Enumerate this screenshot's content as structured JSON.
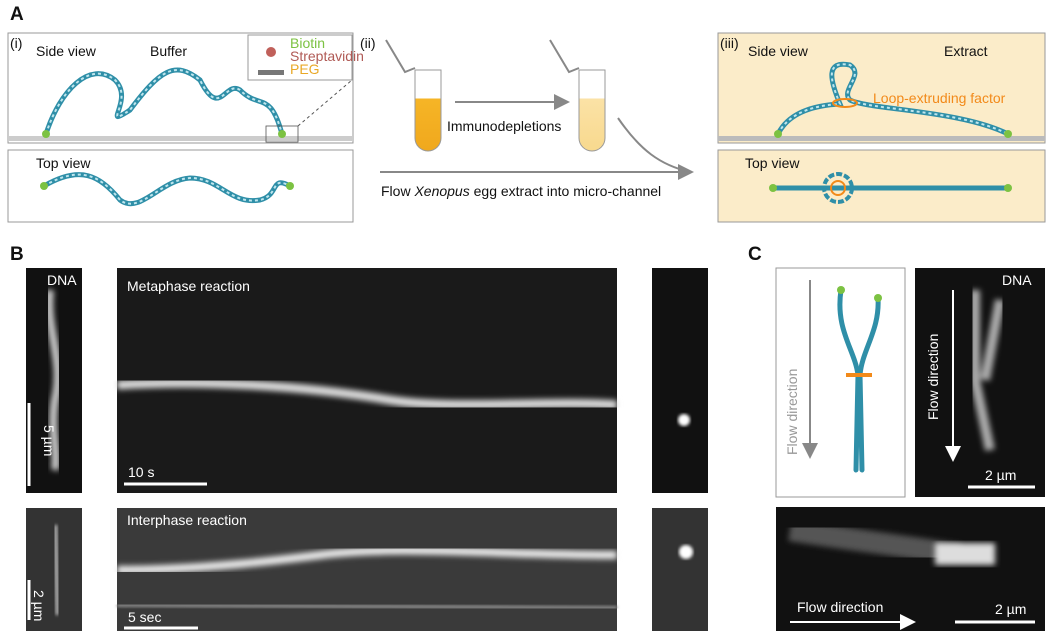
{
  "panel_a": {
    "label": "A",
    "i": {
      "label": "(i)",
      "side_view": "Side view",
      "buffer": "Buffer",
      "legend": [
        "Biotin",
        "Streptavidin",
        "PEG"
      ],
      "top_view": "Top view"
    },
    "ii": {
      "label": "(ii)",
      "step": "Immunodepletions",
      "flow": [
        "Flow ",
        "Xenopus",
        " egg extract into micro-channel"
      ]
    },
    "iii": {
      "label": "(iii)",
      "side_view": "Side view",
      "extract": "Extract",
      "factor": "Loop-extruding factor",
      "top_view": "Top view"
    }
  },
  "panel_b": {
    "label": "B",
    "metaphase": {
      "dna": "DNA",
      "scale_dna": "5 µm",
      "title": "Metaphase reaction",
      "scale_time": "10 s"
    },
    "interphase": {
      "scale_dna": "2 µm",
      "title": "Interphase reaction",
      "scale_time": "5 sec"
    }
  },
  "panel_c": {
    "label": "C",
    "schematic_flow": "Flow direction",
    "dna": "DNA",
    "image_flow": "Flow direction",
    "image_scale": "2 µm",
    "bottom_flow": "Flow direction",
    "bottom_scale": "2 µm"
  }
}
